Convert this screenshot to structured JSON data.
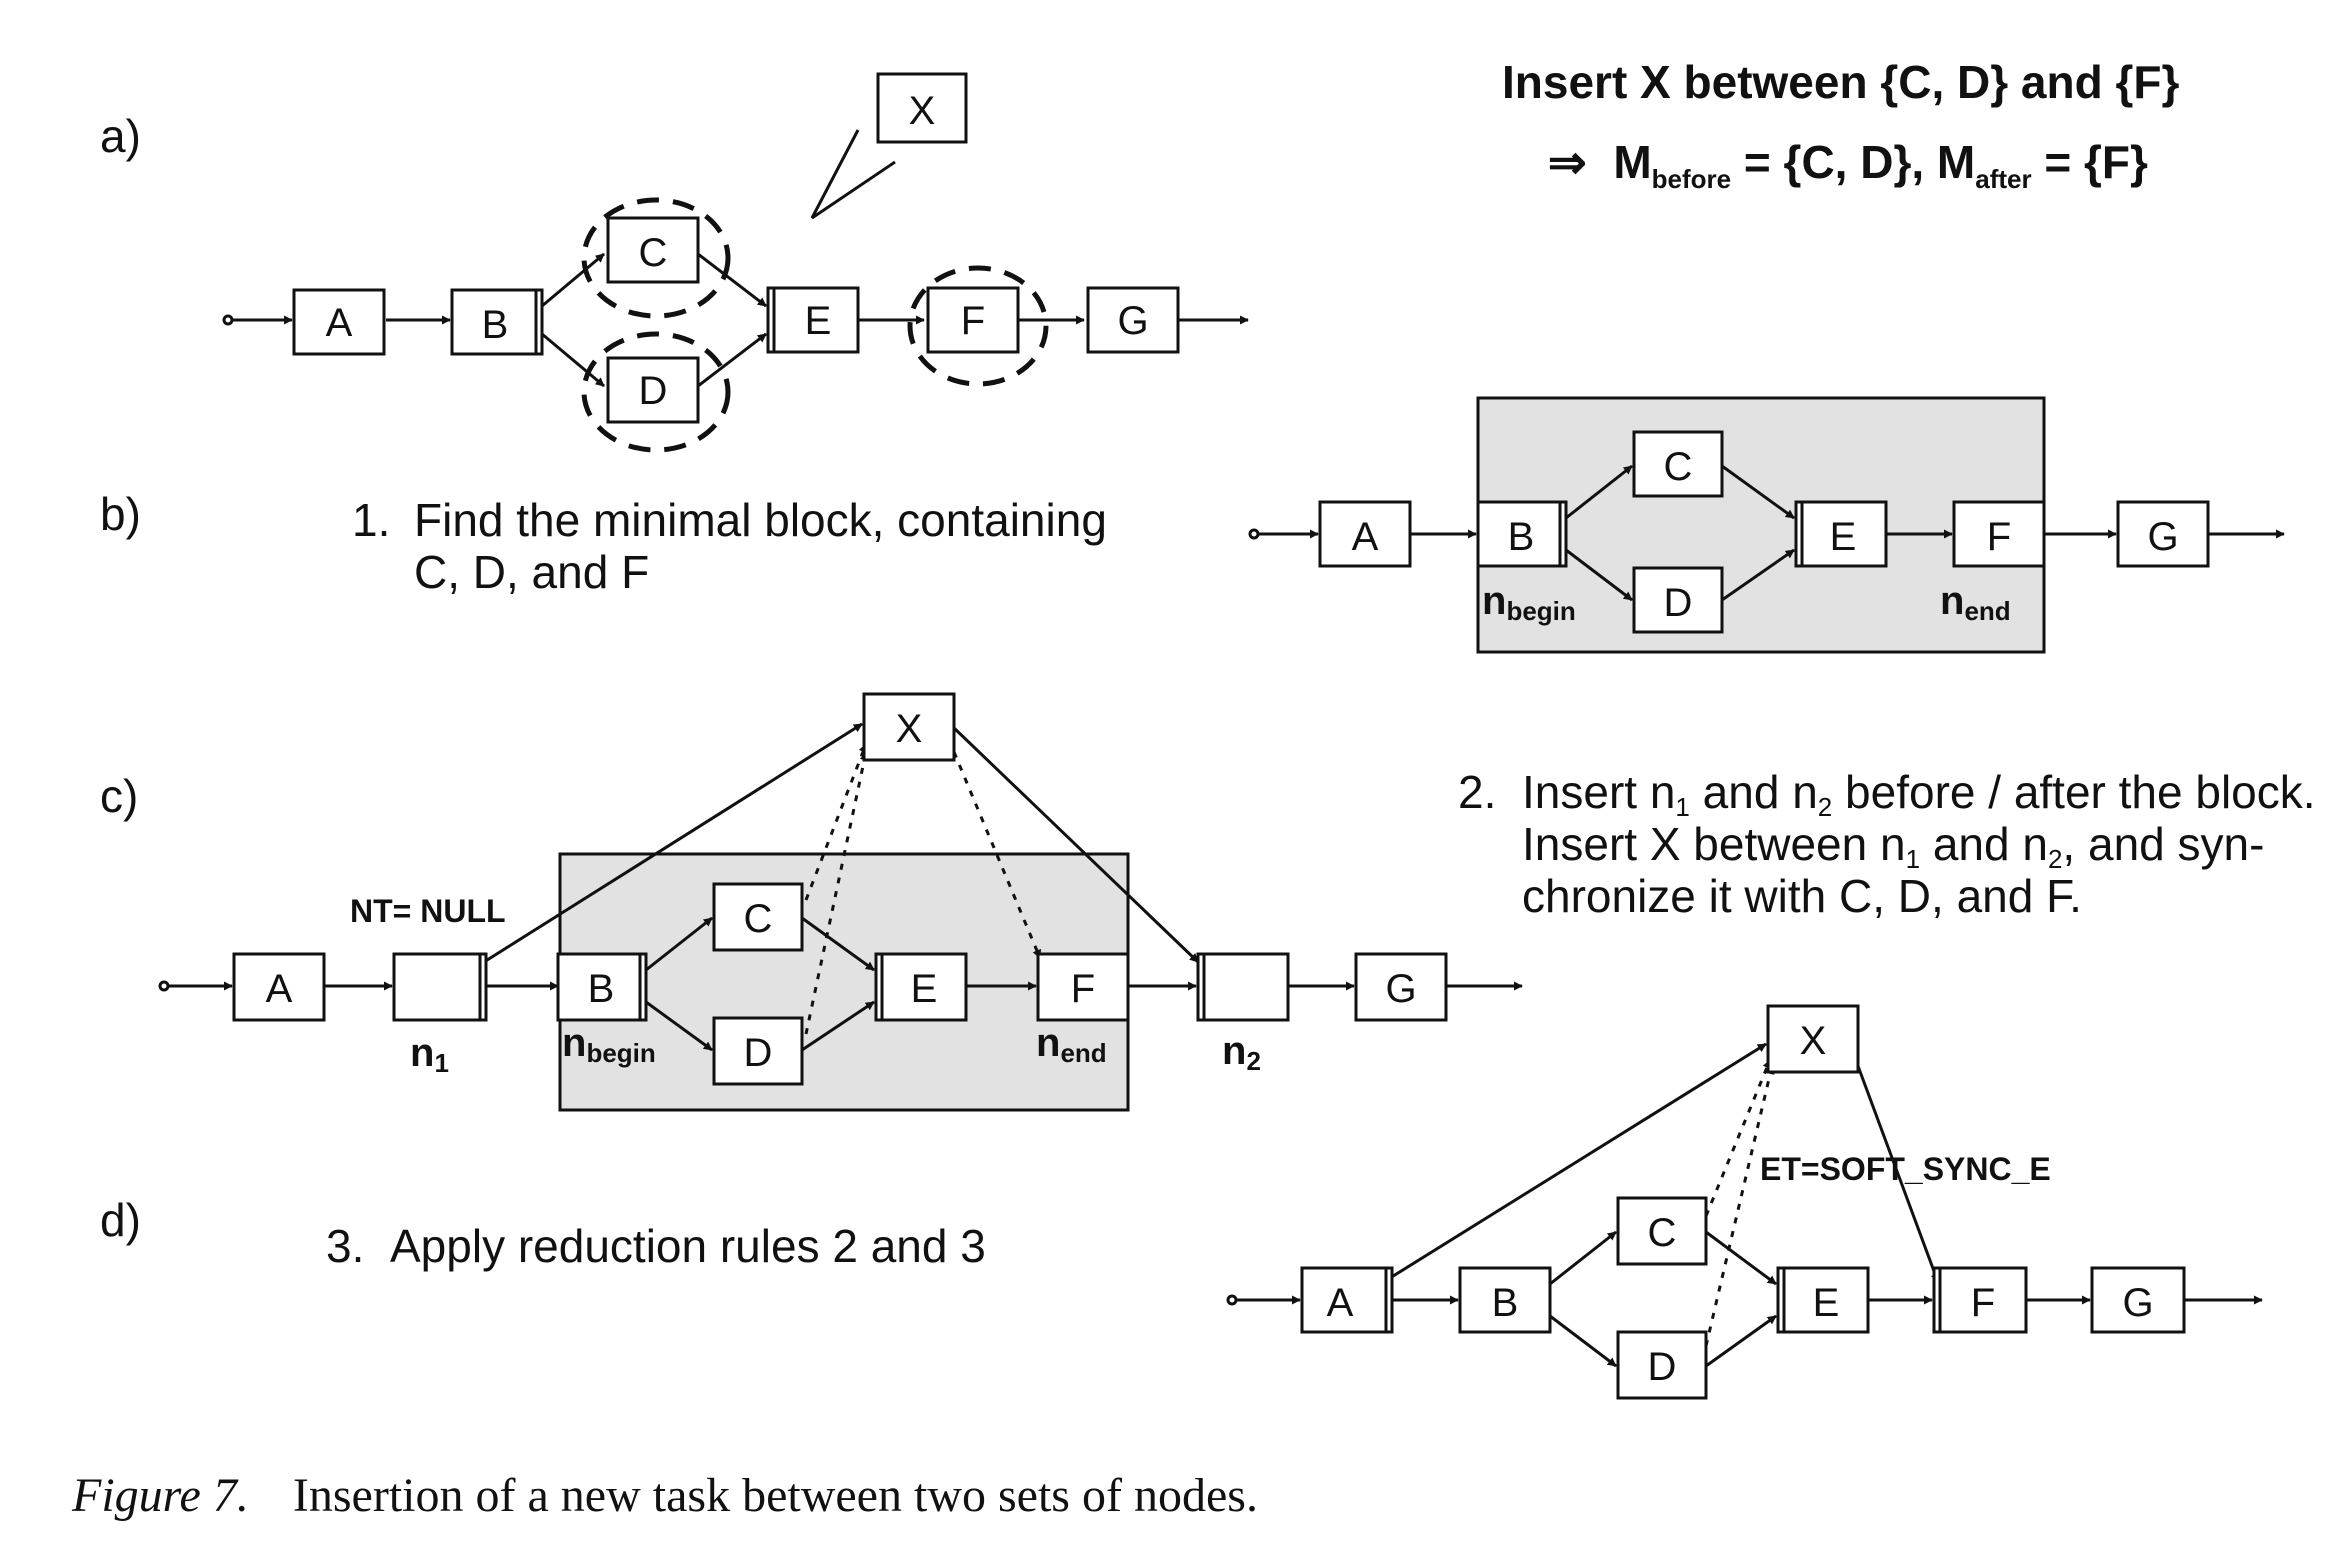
{
  "panels": {
    "a": {
      "label": "a)",
      "x_node": "X",
      "nodes": [
        "A",
        "B",
        "C",
        "D",
        "E",
        "F",
        "G"
      ],
      "heading": "Insert X between {C, D} and {F}",
      "formula": {
        "arrow": "⇒",
        "m1": "M",
        "m1_sub": "before",
        "m1_val": " = {C, D}, ",
        "m2": "M",
        "m2_sub": "after",
        "m2_val": " = {F}"
      }
    },
    "b": {
      "label": "b)",
      "step_number": "1.",
      "step_line1": "Find the minimal block, containing",
      "step_line2": "C, D, and F",
      "nodes": [
        "A",
        "B",
        "C",
        "D",
        "E",
        "F",
        "G"
      ],
      "n_begin": "n",
      "n_begin_sub": "begin",
      "n_end": "n",
      "n_end_sub": "end"
    },
    "c": {
      "label": "c)",
      "nt_label": "NT= NULL",
      "nodes": [
        "A",
        "B",
        "C",
        "D",
        "E",
        "F",
        "G",
        "X"
      ],
      "n1": "n",
      "n1_sub": "1",
      "n2": "n",
      "n2_sub": "2",
      "n_begin": "n",
      "n_begin_sub": "begin",
      "n_end": "n",
      "n_end_sub": "end",
      "step_number": "2.",
      "step_line1_a": "Insert n",
      "step_line1_s1": "1",
      "step_line1_b": " and n",
      "step_line1_s2": "2",
      "step_line1_c": " before / after the block.",
      "step_line2_a": "Insert X between n",
      "step_line2_s1": "1",
      "step_line2_b": " and n",
      "step_line2_s2": "2",
      "step_line2_c": ", and syn-",
      "step_line3": "chronize it with C, D, and F."
    },
    "d": {
      "label": "d)",
      "step_number": "3.",
      "step_text": "Apply reduction rules 2 and 3",
      "nodes": [
        "A",
        "B",
        "C",
        "D",
        "E",
        "F",
        "G",
        "X"
      ],
      "et_label": "ET=SOFT_SYNC_E"
    }
  },
  "caption": {
    "figure": "Figure 7.",
    "text": "Insertion of a new task between two sets of nodes."
  }
}
